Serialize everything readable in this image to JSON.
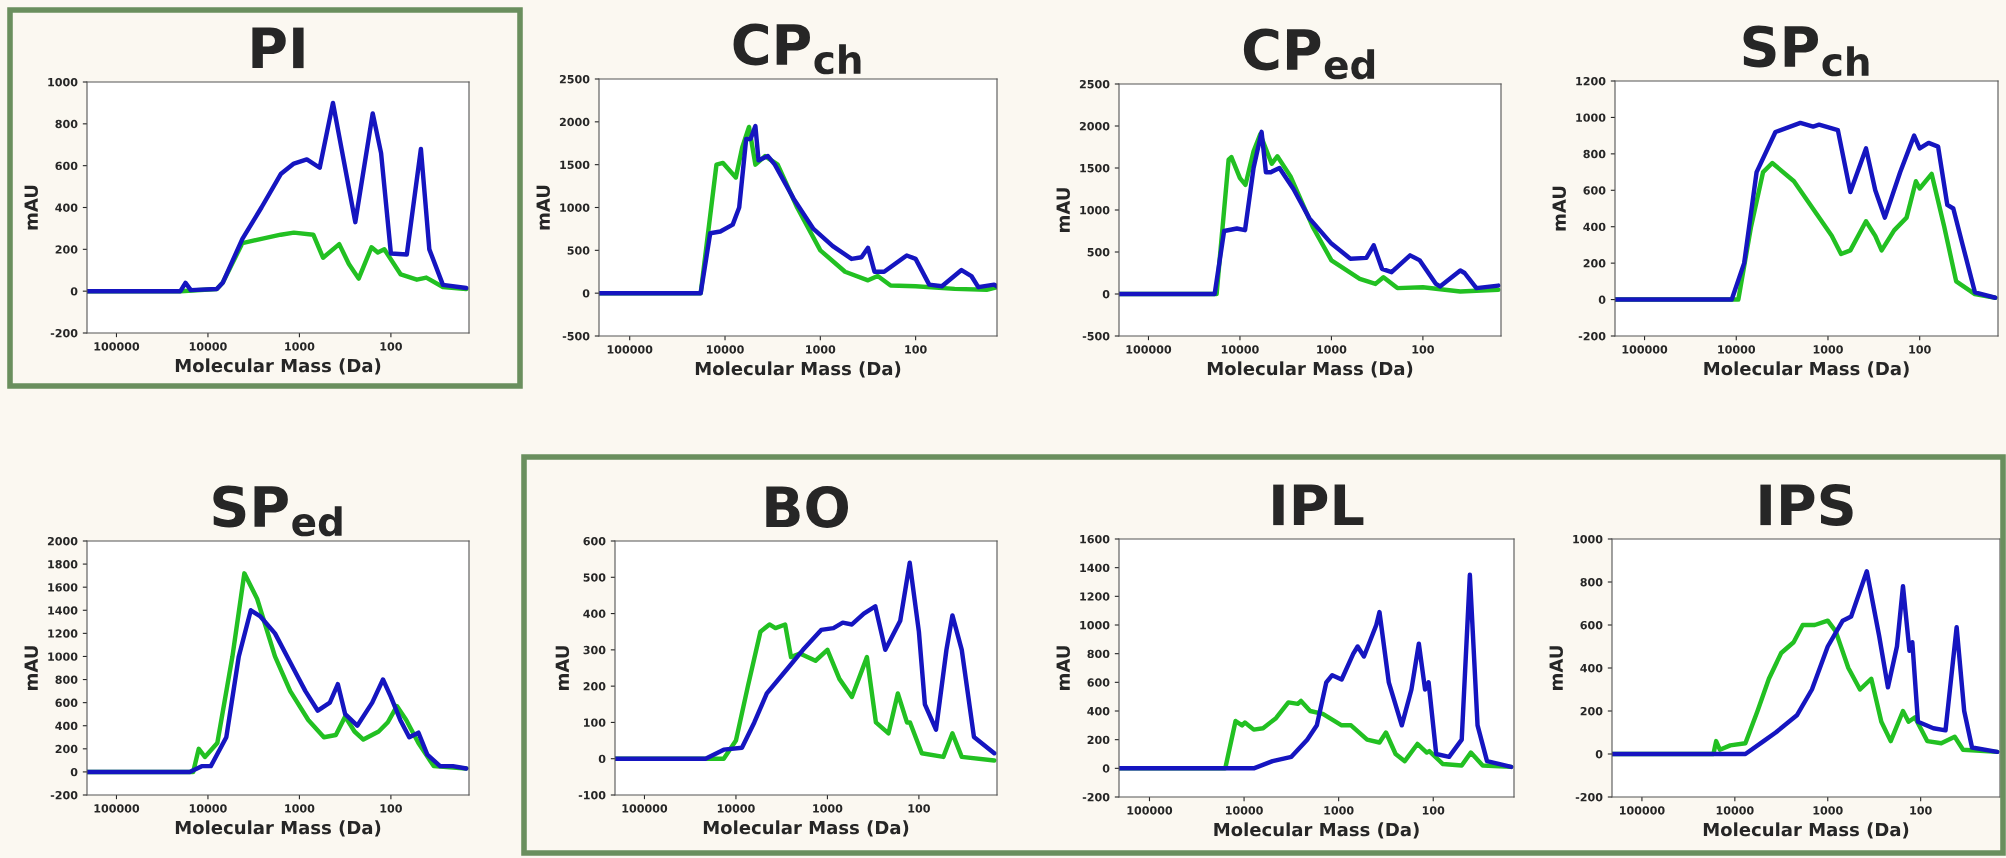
{
  "chart_data": [
    {
      "type": "line",
      "title": "PI",
      "xlabel": "Molecular Mass (Da)",
      "ylabel": "mAU",
      "log": "x",
      "xlim": [
        210000,
        14
      ],
      "xticks": [
        100000,
        10000,
        1000,
        100
      ],
      "ylim": [
        -200,
        1000
      ],
      "yticks": [
        -200,
        0,
        200,
        400,
        600,
        800,
        1000
      ],
      "grid": false,
      "series": [
        {
          "color": "#22c022",
          "x": [
            210000,
            20000,
            8000,
            6900,
            4200,
            2600,
            1600,
            1150,
            705,
            552,
            367,
            288,
            225,
            163,
            139,
            118,
            78,
            52,
            41,
            27,
            15
          ],
          "values": [
            0,
            0,
            10,
            40,
            230,
            250,
            270,
            280,
            270,
            160,
            225,
            130,
            60,
            210,
            185,
            200,
            80,
            55,
            65,
            20,
            10
          ]
        },
        {
          "color": "#1515c0",
          "x": [
            210000,
            20000,
            17600,
            15400,
            8000,
            6900,
            4200,
            2600,
            1600,
            1150,
            830,
            600,
            430,
            245,
            158,
            128,
            100,
            67,
            47,
            38,
            27,
            15
          ],
          "values": [
            0,
            0,
            40,
            5,
            10,
            40,
            250,
            400,
            560,
            610,
            630,
            590,
            900,
            330,
            850,
            660,
            180,
            175,
            680,
            200,
            30,
            15
          ]
        }
      ]
    },
    {
      "type": "line",
      "title": "CP$_{ch}$",
      "xlabel": "Molecular Mass (Da)",
      "ylabel": "mAU",
      "log": "x",
      "xlim": [
        210000,
        14
      ],
      "xticks": [
        100000,
        10000,
        1000,
        100
      ],
      "ylim": [
        -500,
        2500
      ],
      "yticks": [
        -500,
        0,
        500,
        1000,
        1500,
        2000,
        2500
      ],
      "grid": false,
      "series": [
        {
          "color": "#22c022",
          "x": [
            210000,
            18000,
            12300,
            10500,
            7700,
            6600,
            5600,
            4800,
            3800,
            2800,
            1750,
            1000,
            550,
            316,
            250,
            183,
            100,
            39,
            18,
            14
          ],
          "values": [
            0,
            0,
            1500,
            1520,
            1350,
            1700,
            1940,
            1500,
            1600,
            1500,
            1000,
            500,
            250,
            150,
            200,
            90,
            80,
            50,
            40,
            70
          ]
        },
        {
          "color": "#1515c0",
          "x": [
            210000,
            18000,
            14300,
            11200,
            8300,
            7100,
            6000,
            5400,
            4800,
            4450,
            3550,
            3000,
            1900,
            1180,
            740,
            470,
            370,
            316,
            270,
            214,
            124,
            100,
            72,
            53,
            33,
            26,
            22,
            15,
            14
          ],
          "values": [
            0,
            0,
            700,
            720,
            800,
            1000,
            1800,
            1800,
            1950,
            1550,
            1600,
            1500,
            1100,
            750,
            550,
            400,
            420,
            530,
            250,
            250,
            440,
            400,
            100,
            80,
            270,
            200,
            70,
            100,
            80
          ]
        }
      ]
    },
    {
      "type": "line",
      "title": "CP$_{ed}$",
      "xlabel": "Molecular Mass (Da)",
      "ylabel": "mAU",
      "log": "x",
      "xlim": [
        210000,
        14
      ],
      "xticks": [
        100000,
        10000,
        1000,
        100
      ],
      "ylim": [
        -500,
        2500
      ],
      "yticks": [
        -500,
        0,
        500,
        1000,
        1500,
        2000,
        2500
      ],
      "grid": false,
      "series": [
        {
          "color": "#22c022",
          "x": [
            210000,
            18000,
            13300,
            12400,
            10000,
            8700,
            7100,
            6000,
            4500,
            3900,
            2800,
            1600,
            1000,
            490,
            330,
            270,
            190,
            100,
            39,
            15
          ],
          "values": [
            0,
            0,
            1600,
            1630,
            1380,
            1300,
            1700,
            1900,
            1550,
            1640,
            1400,
            800,
            400,
            180,
            120,
            200,
            70,
            80,
            30,
            50
          ]
        },
        {
          "color": "#1515c0",
          "x": [
            210000,
            18900,
            14900,
            10800,
            8800,
            7100,
            5800,
            5200,
            4600,
            3700,
            2600,
            1740,
            1000,
            620,
            415,
            345,
            280,
            220,
            138,
            108,
            72,
            65,
            39,
            35,
            26,
            15
          ],
          "values": [
            0,
            0,
            750,
            780,
            760,
            1500,
            1930,
            1450,
            1450,
            1500,
            1250,
            900,
            600,
            420,
            430,
            580,
            300,
            260,
            460,
            400,
            120,
            90,
            280,
            250,
            70,
            100
          ]
        }
      ]
    },
    {
      "type": "line",
      "title": "SP$_{ch}$",
      "xlabel": "Molecular Mass (Da)",
      "ylabel": "mAU",
      "log": "x",
      "xlim": [
        210000,
        14
      ],
      "xticks": [
        100000,
        10000,
        1000,
        100
      ],
      "ylim": [
        -200,
        1200
      ],
      "yticks": [
        -200,
        0,
        200,
        400,
        600,
        800,
        1000,
        1200
      ],
      "grid": false,
      "series": [
        {
          "color": "#22c022",
          "x": [
            210000,
            9500,
            6900,
            5100,
            4050,
            2350,
            1250,
            910,
            720,
            570,
            385,
            305,
            260,
            190,
            139,
            110,
            100,
            74,
            54,
            40,
            25,
            15
          ],
          "values": [
            0,
            0,
            400,
            700,
            750,
            650,
            450,
            350,
            250,
            270,
            430,
            350,
            270,
            380,
            450,
            650,
            610,
            690,
            400,
            100,
            30,
            10
          ]
        },
        {
          "color": "#1515c0",
          "x": [
            210000,
            11200,
            8200,
            6000,
            3740,
            2000,
            1450,
            1250,
            780,
            570,
            385,
            305,
            240,
            163,
            115,
            100,
            80,
            63,
            50,
            43,
            34,
            25,
            15
          ],
          "values": [
            0,
            0,
            200,
            700,
            920,
            970,
            950,
            960,
            930,
            590,
            830,
            600,
            450,
            700,
            900,
            830,
            860,
            840,
            520,
            500,
            300,
            40,
            10
          ]
        }
      ]
    },
    {
      "type": "line",
      "title": "SP$_{ed}$",
      "xlabel": "Molecular Mass (Da)",
      "ylabel": "mAU",
      "log": "x",
      "xlim": [
        210000,
        14
      ],
      "xticks": [
        100000,
        10000,
        1000,
        100
      ],
      "ylim": [
        -200,
        2000
      ],
      "yticks": [
        -200,
        0,
        200,
        400,
        600,
        800,
        1000,
        1200,
        1400,
        1600,
        1800,
        2000
      ],
      "grid": false,
      "series": [
        {
          "color": "#22c022",
          "x": [
            210000,
            14500,
            12600,
            10800,
            7900,
            5400,
            4000,
            2900,
            1850,
            1260,
            800,
            540,
            400,
            316,
            250,
            200,
            136,
            108,
            86,
            68,
            50,
            34,
            15
          ],
          "values": [
            0,
            0,
            200,
            130,
            250,
            1000,
            1720,
            1500,
            1000,
            700,
            450,
            300,
            320,
            480,
            350,
            280,
            350,
            430,
            570,
            450,
            250,
            50,
            30
          ]
        },
        {
          "color": "#1515c0",
          "x": [
            210000,
            15800,
            11700,
            9300,
            6300,
            4600,
            3400,
            2700,
            1850,
            1170,
            860,
            630,
            465,
            380,
            316,
            233,
            160,
            122,
            100,
            79,
            63,
            50,
            40,
            29,
            21,
            15
          ],
          "values": [
            0,
            0,
            50,
            50,
            300,
            1000,
            1400,
            1350,
            1200,
            900,
            700,
            530,
            600,
            760,
            500,
            400,
            600,
            800,
            650,
            450,
            300,
            340,
            150,
            50,
            50,
            30
          ]
        }
      ]
    },
    {
      "type": "line",
      "title": "BO",
      "xlabel": "Molecular Mass (Da)",
      "ylabel": "mAU",
      "log": "x",
      "xlim": [
        210000,
        14
      ],
      "xticks": [
        100000,
        10000,
        1000,
        100
      ],
      "ylim": [
        -100,
        600
      ],
      "yticks": [
        -100,
        0,
        100,
        200,
        300,
        400,
        500,
        600
      ],
      "grid": false,
      "series": [
        {
          "color": "#22c022",
          "x": [
            210000,
            13600,
            10000,
            7400,
            5400,
            4300,
            3700,
            2900,
            2500,
            2000,
            1350,
            1000,
            740,
            540,
            370,
            295,
            215,
            170,
            135,
            125,
            93,
            54,
            43,
            34,
            15
          ],
          "values": [
            0,
            0,
            50,
            200,
            350,
            370,
            360,
            370,
            280,
            290,
            270,
            300,
            220,
            170,
            280,
            100,
            70,
            180,
            100,
            100,
            15,
            5,
            70,
            5,
            -5
          ]
        },
        {
          "color": "#1515c0",
          "x": [
            210000,
            21500,
            13600,
            8600,
            6300,
            4600,
            2700,
            1850,
            1170,
            860,
            680,
            540,
            400,
            300,
            233,
            160,
            126,
            100,
            86,
            65,
            50,
            43,
            34,
            25,
            15
          ],
          "values": [
            0,
            0,
            25,
            30,
            100,
            180,
            250,
            300,
            355,
            360,
            375,
            370,
            400,
            420,
            300,
            380,
            540,
            350,
            150,
            80,
            300,
            395,
            300,
            60,
            15
          ]
        }
      ]
    },
    {
      "type": "line",
      "title": "IPL",
      "xlabel": "Molecular Mass (Da)",
      "ylabel": "mAU",
      "log": "x",
      "xlim": [
        210000,
        14
      ],
      "xticks": [
        100000,
        10000,
        1000,
        100
      ],
      "ylim": [
        -200,
        1600
      ],
      "yticks": [
        -200,
        0,
        200,
        400,
        600,
        800,
        1000,
        1200,
        1400,
        1600
      ],
      "grid": false,
      "series": [
        {
          "color": "#22c022",
          "x": [
            210000,
            15800,
            12300,
            10500,
            9800,
            7900,
            6300,
            4600,
            3400,
            2700,
            2500,
            2000,
            1470,
            930,
            740,
            500,
            370,
            316,
            250,
            200,
            147,
            117,
            110,
            79,
            50,
            40,
            30,
            15
          ],
          "values": [
            0,
            0,
            330,
            300,
            320,
            270,
            280,
            350,
            460,
            450,
            470,
            400,
            380,
            300,
            300,
            200,
            180,
            250,
            100,
            50,
            170,
            110,
            120,
            30,
            20,
            110,
            20,
            10
          ]
        },
        {
          "color": "#1515c0",
          "x": [
            210000,
            7900,
            5000,
            3160,
            2150,
            1700,
            1350,
            1170,
            930,
            700,
            630,
            540,
            400,
            370,
            295,
            215,
            170,
            142,
            122,
            112,
            93,
            68,
            50,
            41,
            34,
            27,
            15
          ],
          "values": [
            0,
            0,
            50,
            80,
            200,
            300,
            600,
            650,
            620,
            800,
            850,
            780,
            1000,
            1090,
            600,
            300,
            550,
            870,
            550,
            600,
            100,
            80,
            200,
            1350,
            300,
            50,
            10
          ]
        }
      ]
    },
    {
      "type": "line",
      "title": "IPS",
      "xlabel": "Molecular Mass (Da)",
      "ylabel": "mAU",
      "log": "x",
      "xlim": [
        210000,
        14
      ],
      "xticks": [
        100000,
        10000,
        1000,
        100
      ],
      "ylim": [
        -200,
        1000
      ],
      "yticks": [
        -200,
        0,
        200,
        400,
        600,
        800,
        1000
      ],
      "grid": false,
      "series": [
        {
          "color": "#22c022",
          "x": [
            210000,
            17000,
            15900,
            14500,
            11200,
            7700,
            5700,
            4300,
            3170,
            2330,
            1860,
            1380,
            1000,
            820,
            600,
            450,
            340,
            265,
            210,
            155,
            135,
            115,
            85,
            60,
            43,
            35,
            15
          ],
          "values": [
            0,
            0,
            60,
            20,
            40,
            50,
            200,
            350,
            470,
            520,
            600,
            600,
            620,
            570,
            400,
            300,
            350,
            150,
            60,
            200,
            150,
            170,
            60,
            50,
            80,
            20,
            10
          ]
        },
        {
          "color": "#1515c0",
          "x": [
            210000,
            7700,
            4900,
            3630,
            2150,
            1480,
            1000,
            690,
            560,
            380,
            280,
            225,
            180,
            155,
            132,
            123,
            107,
            73,
            54,
            41,
            34,
            28,
            15
          ],
          "values": [
            0,
            0,
            60,
            100,
            180,
            300,
            500,
            620,
            640,
            850,
            550,
            310,
            500,
            780,
            480,
            520,
            150,
            120,
            110,
            590,
            200,
            30,
            10
          ]
        }
      ]
    }
  ]
}
